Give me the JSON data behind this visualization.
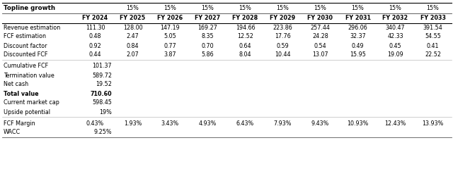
{
  "title": "Topline growth",
  "growth_rate": "15%",
  "years": [
    "FY 2024",
    "FY 2025",
    "FY 2026",
    "FY 2027",
    "FY 2028",
    "FY 2029",
    "FY 2030",
    "FY 2031",
    "FY 2032",
    "FY 2033"
  ],
  "revenue_estimation": [
    111.3,
    128.0,
    147.19,
    169.27,
    194.66,
    223.86,
    257.44,
    296.06,
    340.47,
    391.54
  ],
  "fcf_estimation": [
    0.48,
    2.47,
    5.05,
    8.35,
    12.52,
    17.76,
    24.28,
    32.37,
    42.33,
    54.55
  ],
  "discount_factor": [
    0.92,
    0.84,
    0.77,
    0.7,
    0.64,
    0.59,
    0.54,
    0.49,
    0.45,
    0.41
  ],
  "discounted_fcf": [
    0.44,
    2.07,
    3.87,
    5.86,
    8.04,
    10.44,
    13.07,
    15.95,
    19.09,
    22.52
  ],
  "cumulative_fcf": "101.37",
  "termination_value": "589.72",
  "net_cash": "19.52",
  "total_value": "710.60",
  "current_market_cap": "598.45",
  "upside_potential": "19%",
  "fcf_margin": [
    "0.43%",
    "1.93%",
    "3.43%",
    "4.93%",
    "6.43%",
    "7.93%",
    "9.43%",
    "10.93%",
    "12.43%",
    "13.93%"
  ],
  "wacc": "9.25%",
  "bg_color": "#ffffff",
  "text_color": "#000000",
  "fontsize": 5.8,
  "title_fontsize": 6.2
}
